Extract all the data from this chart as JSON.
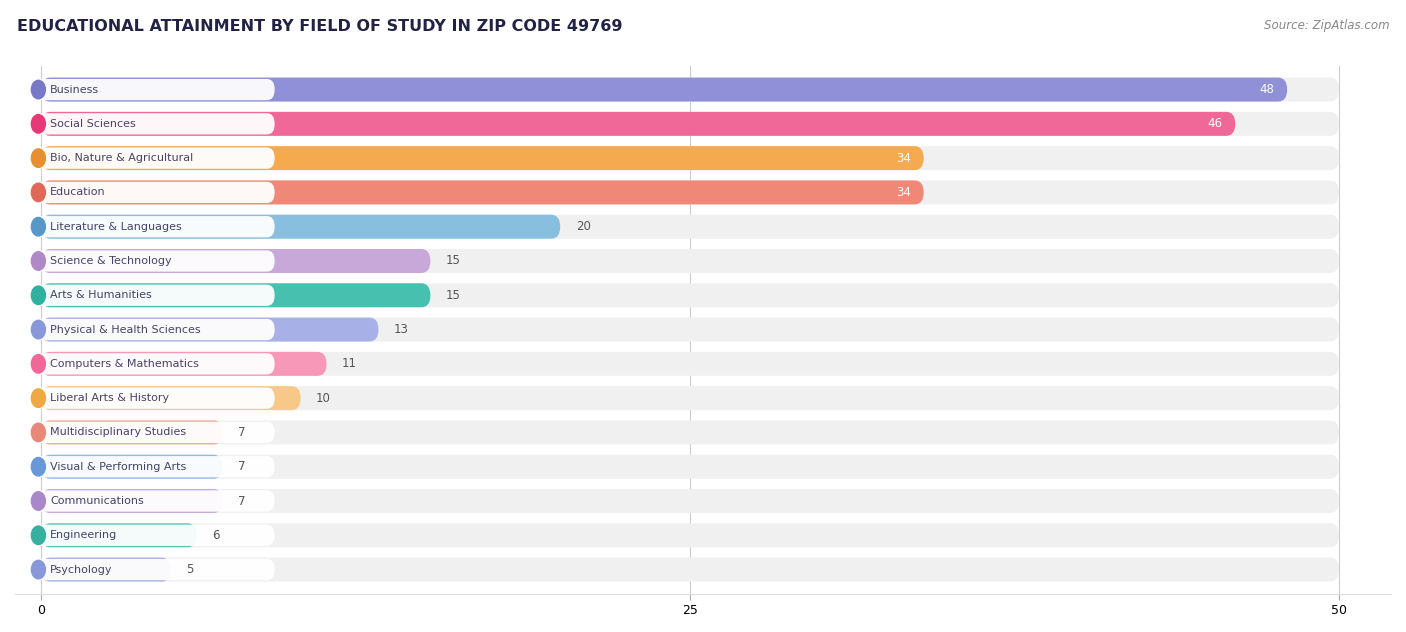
{
  "title": "EDUCATIONAL ATTAINMENT BY FIELD OF STUDY IN ZIP CODE 49769",
  "source": "Source: ZipAtlas.com",
  "categories": [
    "Business",
    "Social Sciences",
    "Bio, Nature & Agricultural",
    "Education",
    "Literature & Languages",
    "Science & Technology",
    "Arts & Humanities",
    "Physical & Health Sciences",
    "Computers & Mathematics",
    "Liberal Arts & History",
    "Multidisciplinary Studies",
    "Visual & Performing Arts",
    "Communications",
    "Engineering",
    "Psychology"
  ],
  "values": [
    48,
    46,
    34,
    34,
    20,
    15,
    15,
    13,
    11,
    10,
    7,
    7,
    7,
    6,
    5
  ],
  "bar_colors": [
    "#9090D8",
    "#F06898",
    "#F5AA50",
    "#F08878",
    "#88BEDE",
    "#C8A8D8",
    "#48C0B0",
    "#A8B0E8",
    "#F898B8",
    "#F8C888",
    "#F5A898",
    "#90B8E8",
    "#C8ACDC",
    "#58C4B4",
    "#A8B0E8"
  ],
  "dot_colors": [
    "#7878C8",
    "#E83878",
    "#E89030",
    "#E06858",
    "#5898C8",
    "#B088C8",
    "#30B0A0",
    "#8898D8",
    "#F06898",
    "#F0A840",
    "#E88878",
    "#6898D8",
    "#A888C8",
    "#38B0A0",
    "#8898D8"
  ],
  "xlim_data": [
    0,
    50
  ],
  "xticks": [
    0,
    25,
    50
  ],
  "background_color": "#ffffff",
  "bar_bg_color": "#f0f0f0",
  "label_bg": "#ffffff"
}
